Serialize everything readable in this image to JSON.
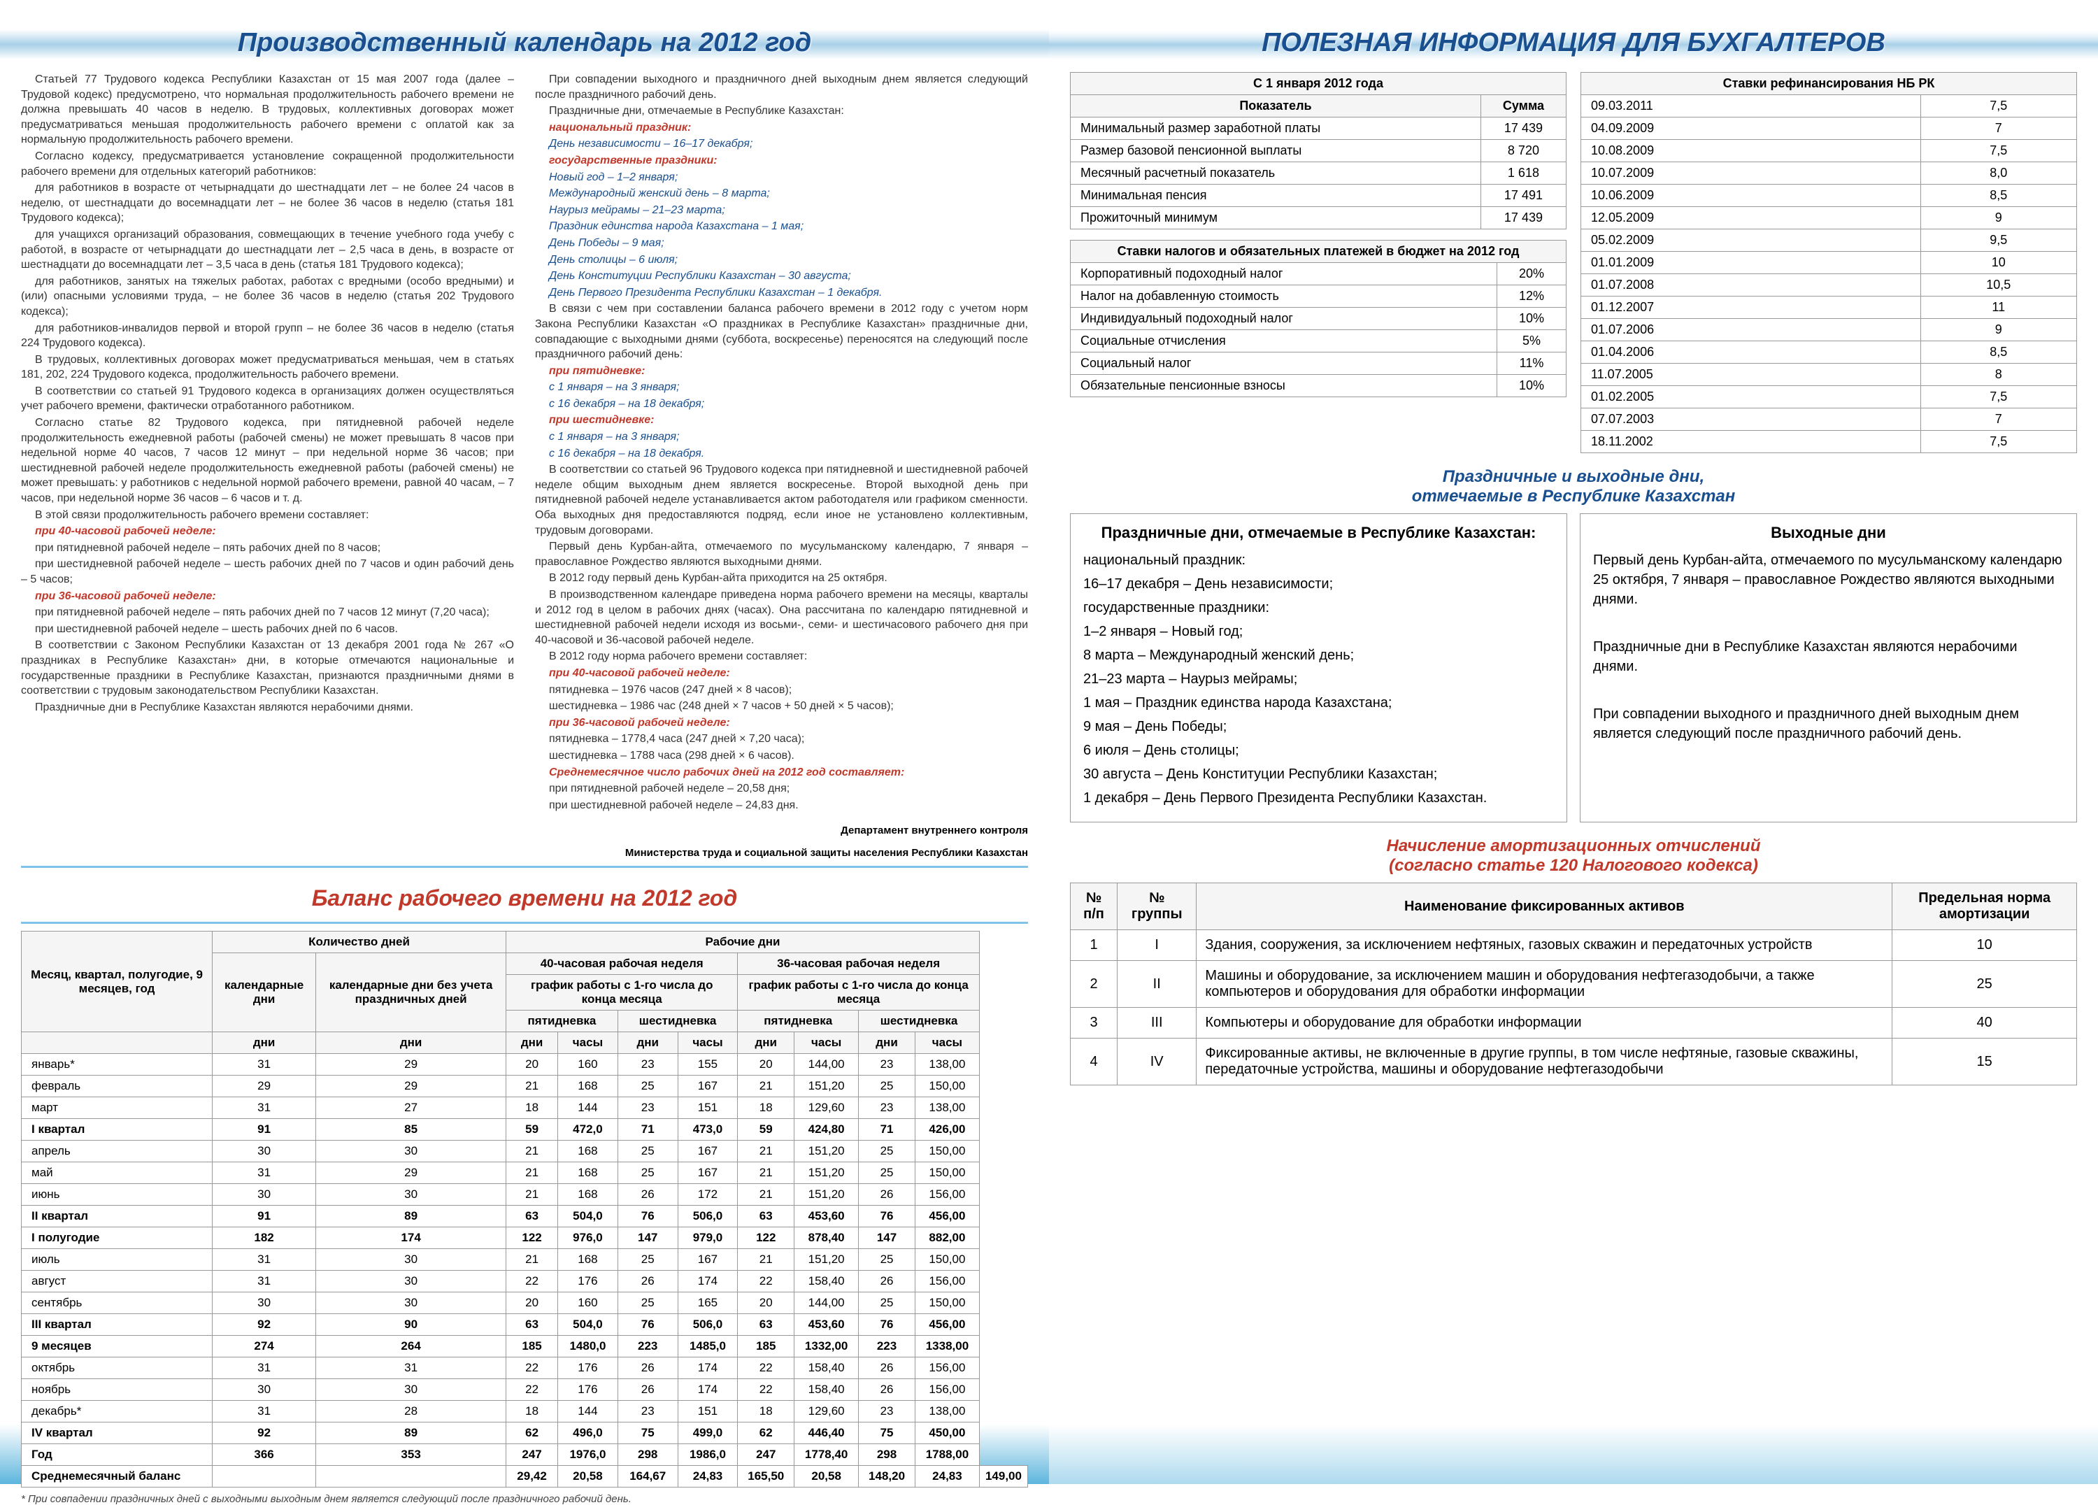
{
  "left": {
    "h1": "Производственный календарь на 2012 год",
    "col1": [
      {
        "t": "p",
        "v": "Статьей 77 Трудового кодекса Республики Казахстан от 15 мая 2007 года (далее – Трудовой кодекс) предусмотрено, что нормальная продолжительность рабочего времени не должна превышать 40 часов в неделю. В трудовых, коллективных договорах может предусматриваться меньшая продолжительность рабочего времени с оплатой как за нормальную продолжительность рабочего времени."
      },
      {
        "t": "p",
        "v": "Согласно кодексу, предусматривается установление сокращенной продолжительности рабочего времени для отдельных категорий работников:"
      },
      {
        "t": "p",
        "v": "для работников в возрасте от четырнадцати до шестнадцати лет – не более 24 часов в неделю, от шестнадцати до восемнадцати лет – не более 36 часов в неделю (статья 181 Трудового кодекса);"
      },
      {
        "t": "p",
        "v": "для учащихся организаций образования, совмещающих в течение учебного года учебу с работой, в возрасте от четырнадцати до шестнадцати лет – 2,5 часа в день, в возрасте от шестнадцати до восемнадцати лет – 3,5 часа в день (статья 181 Трудового кодекса);"
      },
      {
        "t": "p",
        "v": "для работников, занятых на тяжелых работах, работах с вредными (особо вредными) и (или) опасными условиями труда, – не более 36 часов в неделю (статья 202 Трудового кодекса);"
      },
      {
        "t": "p",
        "v": "для работников-инвалидов первой и второй групп – не более 36 часов в неделю (статья 224 Трудового кодекса)."
      },
      {
        "t": "p",
        "v": "В трудовых, коллективных договорах может предусматриваться меньшая, чем в статьях 181, 202, 224 Трудового кодекса, продолжительность рабочего времени."
      },
      {
        "t": "p",
        "v": "В соответствии со статьей 91 Трудового кодекса в организациях должен осуществляться учет рабочего времени, фактически отработанного работником."
      },
      {
        "t": "p",
        "v": "Согласно статье 82 Трудового кодекса, при пятидневной рабочей неделе продолжительность ежедневной работы (рабочей смены) не может превышать 8 часов при недельной норме 40 часов, 7 часов 12 минут – при недельной норме 36 часов; при шестидневной рабочей неделе продолжительность ежедневной работы (рабочей смены) не может превышать: у работников с недельной нормой рабочего времени, равной 40 часам, – 7 часов, при недельной норме 36 часов – 6 часов и т. д."
      },
      {
        "t": "p",
        "v": "В этой связи продолжительность рабочего времени составляет:"
      },
      {
        "t": "red-i",
        "v": "при 40-часовой рабочей неделе:"
      },
      {
        "t": "p",
        "v": "при пятидневной рабочей неделе – пять рабочих дней по 8 часов;"
      },
      {
        "t": "p",
        "v": "при шестидневной рабочей неделе – шесть рабочих дней по 7 часов и один рабочий день – 5 часов;"
      },
      {
        "t": "red-i",
        "v": "при 36-часовой рабочей неделе:"
      },
      {
        "t": "p",
        "v": "при пятидневной рабочей неделе – пять рабочих дней по 7 часов 12 минут (7,20 часа);"
      },
      {
        "t": "p",
        "v": "при шестидневной рабочей неделе – шесть рабочих дней по 6 часов."
      },
      {
        "t": "p",
        "v": "В соответствии с Законом Республики Казахстан от 13 декабря 2001 года № 267 «О праздниках в Республике Казахстан» дни, в которые отмечаются национальные и государственные праздники в Республике Казахстан, признаются праздничными днями в соответствии с трудовым законодательством Республики Казахстан."
      },
      {
        "t": "p",
        "v": "Праздничные дни в Республике Казахстан являются нерабочими днями."
      }
    ],
    "col2": [
      {
        "t": "p",
        "v": "При совпадении выходного и праздничного дней выходным днем является следующий после праздничного рабочий день."
      },
      {
        "t": "p",
        "v": "Праздничные дни, отмечаемые в Республике Казахстан:"
      },
      {
        "t": "red-i",
        "v": "национальный праздник:"
      },
      {
        "t": "blue-i",
        "v": "День независимости – 16–17 декабря;"
      },
      {
        "t": "red-i",
        "v": "государственные праздники:"
      },
      {
        "t": "blue-i",
        "v": "Новый год – 1–2 января;"
      },
      {
        "t": "blue-i",
        "v": "Международный женский день – 8 марта;"
      },
      {
        "t": "blue-i",
        "v": "Наурыз мейрамы – 21–23 марта;"
      },
      {
        "t": "blue-i",
        "v": "Праздник единства народа Казахстана – 1 мая;"
      },
      {
        "t": "blue-i",
        "v": "День Победы – 9 мая;"
      },
      {
        "t": "blue-i",
        "v": "День столицы – 6 июля;"
      },
      {
        "t": "blue-i",
        "v": "День Конституции Республики Казахстан – 30 августа;"
      },
      {
        "t": "blue-i",
        "v": "День Первого Президента Республики Казахстан – 1 декабря."
      },
      {
        "t": "p",
        "v": "В связи с чем при составлении баланса рабочего времени в 2012 году с учетом норм Закона Республики Казахстан «О праздниках в Республике Казахстан» праздничные дни, совпадающие с выходными днями (суббота, воскресенье) переносятся на следующий после праздничного рабочий день:"
      },
      {
        "t": "red-i",
        "v": "при пятидневке:"
      },
      {
        "t": "blue-i",
        "v": "с 1 января – на 3 января;"
      },
      {
        "t": "blue-i",
        "v": "с 16 декабря – на 18 декабря;"
      },
      {
        "t": "red-i",
        "v": "при шестидневке:"
      },
      {
        "t": "blue-i",
        "v": "с 1 января – на 3 января;"
      },
      {
        "t": "blue-i",
        "v": "с 16 декабря – на 18 декабря."
      },
      {
        "t": "p",
        "v": "В соответствии со статьей 96 Трудового кодекса при пятидневной и шестидневной рабочей неделе общим выходным днем является воскресенье. Второй выходной день при пятидневной рабочей неделе устанавливается актом работодателя или графиком сменности. Оба выходных дня предоставляются подряд, если иное не установлено коллективным, трудовым договорами."
      },
      {
        "t": "p",
        "v": "Первый день Курбан-айта, отмечаемого по мусульманскому календарю, 7 января – православное Рождество являются выходными днями."
      },
      {
        "t": "p",
        "v": "В 2012 году первый день Курбан-айта приходится на 25 октября."
      },
      {
        "t": "p",
        "v": "В производственном календаре приведена норма рабочего времени на месяцы, кварталы и 2012 год в целом в рабочих днях (часах). Она рассчитана по календарю пятидневной и шестидневной рабочей недели исходя из восьми-, семи- и шестичасового рабочего дня при 40-часовой и 36-часовой рабочей неделе."
      },
      {
        "t": "p",
        "v": "В 2012 году норма рабочего времени составляет:"
      },
      {
        "t": "red-i",
        "v": "при 40-часовой рабочей неделе:"
      },
      {
        "t": "p",
        "v": "пятидневка – 1976 часов (247 дней × 8 часов);"
      },
      {
        "t": "p",
        "v": "шестидневка – 1986 час (248 дней × 7 часов + 50 дней × 5 часов);"
      },
      {
        "t": "red-i",
        "v": "при 36-часовой рабочей неделе:"
      },
      {
        "t": "p",
        "v": "пятидневка – 1778,4 часа (247 дней × 7,20 часа);"
      },
      {
        "t": "p",
        "v": "шестидневка – 1788 часа (298 дней × 6 часов)."
      },
      {
        "t": "red-i",
        "v": "Среднемесячное число рабочих дней на 2012 год составляет:"
      },
      {
        "t": "p",
        "v": "при пятидневной рабочей неделе – 20,58 дня;"
      },
      {
        "t": "p",
        "v": "при шестидневной рабочей неделе – 24,83 дня."
      }
    ],
    "sig1": "Департамент внутреннего контроля",
    "sig2": "Министерства труда и социальной защиты населения Республики Казахстан",
    "h2": "Баланс рабочего времени на 2012 год",
    "tbl": {
      "head": {
        "c1": "Месяц, квартал, полугодие, 9 месяцев, год",
        "g1": "Количество дней",
        "g2": "Рабочие дни",
        "c2": "календарные дни",
        "c3": "календарные дни без учета праздничных дней",
        "g3": "40-часовая рабочая неделя",
        "g4": "36-часовая рабочая неделя",
        "sub": "график работы с 1-го числа до конца месяца",
        "p": "пятидневка",
        "s": "шестидневка",
        "d": "дни",
        "h": "часы"
      },
      "rows": [
        [
          "январь*",
          "31",
          "29",
          "20",
          "160",
          "23",
          "155",
          "20",
          "144,00",
          "23",
          "138,00",
          0
        ],
        [
          "февраль",
          "29",
          "29",
          "21",
          "168",
          "25",
          "167",
          "21",
          "151,20",
          "25",
          "150,00",
          0
        ],
        [
          "март",
          "31",
          "27",
          "18",
          "144",
          "23",
          "151",
          "18",
          "129,60",
          "23",
          "138,00",
          0
        ],
        [
          "I квартал",
          "91",
          "85",
          "59",
          "472,0",
          "71",
          "473,0",
          "59",
          "424,80",
          "71",
          "426,00",
          1
        ],
        [
          "апрель",
          "30",
          "30",
          "21",
          "168",
          "25",
          "167",
          "21",
          "151,20",
          "25",
          "150,00",
          0
        ],
        [
          "май",
          "31",
          "29",
          "21",
          "168",
          "25",
          "167",
          "21",
          "151,20",
          "25",
          "150,00",
          0
        ],
        [
          "июнь",
          "30",
          "30",
          "21",
          "168",
          "26",
          "172",
          "21",
          "151,20",
          "26",
          "156,00",
          0
        ],
        [
          "II квартал",
          "91",
          "89",
          "63",
          "504,0",
          "76",
          "506,0",
          "63",
          "453,60",
          "76",
          "456,00",
          1
        ],
        [
          "I полугодие",
          "182",
          "174",
          "122",
          "976,0",
          "147",
          "979,0",
          "122",
          "878,40",
          "147",
          "882,00",
          1
        ],
        [
          "июль",
          "31",
          "30",
          "21",
          "168",
          "25",
          "167",
          "21",
          "151,20",
          "25",
          "150,00",
          0
        ],
        [
          "август",
          "31",
          "30",
          "22",
          "176",
          "26",
          "174",
          "22",
          "158,40",
          "26",
          "156,00",
          0
        ],
        [
          "сентябрь",
          "30",
          "30",
          "20",
          "160",
          "25",
          "165",
          "20",
          "144,00",
          "25",
          "150,00",
          0
        ],
        [
          "III квартал",
          "92",
          "90",
          "63",
          "504,0",
          "76",
          "506,0",
          "63",
          "453,60",
          "76",
          "456,00",
          1
        ],
        [
          "9 месяцев",
          "274",
          "264",
          "185",
          "1480,0",
          "223",
          "1485,0",
          "185",
          "1332,00",
          "223",
          "1338,00",
          1
        ],
        [
          "октябрь",
          "31",
          "31",
          "22",
          "176",
          "26",
          "174",
          "22",
          "158,40",
          "26",
          "156,00",
          0
        ],
        [
          "ноябрь",
          "30",
          "30",
          "22",
          "176",
          "26",
          "174",
          "22",
          "158,40",
          "26",
          "156,00",
          0
        ],
        [
          "декабрь*",
          "31",
          "28",
          "18",
          "144",
          "23",
          "151",
          "18",
          "129,60",
          "23",
          "138,00",
          0
        ],
        [
          "IV квартал",
          "92",
          "89",
          "62",
          "496,0",
          "75",
          "499,0",
          "62",
          "446,40",
          "75",
          "450,00",
          1
        ],
        [
          "Год",
          "366",
          "353",
          "247",
          "1976,0",
          "298",
          "1986,0",
          "247",
          "1778,40",
          "298",
          "1788,00",
          1
        ],
        [
          "Среднемесячный баланс",
          "",
          "",
          "29,42",
          "20,58",
          "164,67",
          "24,83",
          "165,50",
          "20,58",
          "148,20",
          "24,83",
          "149,00",
          1
        ]
      ],
      "foot": "* При совпадении праздничных дней с выходными выходным днем является следующий после праздничного рабочий день."
    }
  },
  "right": {
    "h1": "ПОЛЕЗНАЯ ИНФОРМАЦИЯ ДЛЯ БУХГАЛТЕРОВ",
    "t1": {
      "title": "С 1 января 2012 года",
      "h": [
        "Показатель",
        "Сумма"
      ],
      "rows": [
        [
          "Минимальный размер заработной платы",
          "17 439"
        ],
        [
          "Размер базовой пенсионной выплаты",
          "8 720"
        ],
        [
          "Месячный расчетный показатель",
          "1 618"
        ],
        [
          "Минимальная пенсия",
          "17 491"
        ],
        [
          "Прожиточный минимум",
          "17 439"
        ]
      ]
    },
    "t2": {
      "title": "Ставки налогов и обязательных платежей в бюджет на 2012 год",
      "rows": [
        [
          "Корпоративный подоходный налог",
          "20%"
        ],
        [
          "Налог на добавленную стоимость",
          "12%"
        ],
        [
          "Индивидуальный подоходный налог",
          "10%"
        ],
        [
          "Социальные отчисления",
          "5%"
        ],
        [
          "Социальный налог",
          "11%"
        ],
        [
          "Обязательные пенсионные взносы",
          "10%"
        ]
      ]
    },
    "t3": {
      "title": "Ставки рефинансирования НБ РК",
      "rows": [
        [
          "09.03.2011",
          "7,5"
        ],
        [
          "04.09.2009",
          "7"
        ],
        [
          "10.08.2009",
          "7,5"
        ],
        [
          "10.07.2009",
          "8,0"
        ],
        [
          "10.06.2009",
          "8,5"
        ],
        [
          "12.05.2009",
          "9"
        ],
        [
          "05.02.2009",
          "9,5"
        ],
        [
          "01.01.2009",
          "10"
        ],
        [
          "01.07.2008",
          "10,5"
        ],
        [
          "01.12.2007",
          "11"
        ],
        [
          "01.07.2006",
          "9"
        ],
        [
          "01.04.2006",
          "8,5"
        ],
        [
          "11.07.2005",
          "8"
        ],
        [
          "01.02.2005",
          "7,5"
        ],
        [
          "07.07.2003",
          "7"
        ],
        [
          "18.11.2002",
          "7,5"
        ]
      ]
    },
    "h2a": "Праздничные и выходные дни,",
    "h2b": "отмечаемые в Республике Казахстан",
    "p1": {
      "title": "Праздничные дни, отмечаемые в Республике Казахстан:",
      "lines": [
        "национальный праздник:",
        "16–17 декабря – День независимости;",
        "государственные праздники:",
        "1–2 января – Новый год;",
        "8 марта – Международный женский день;",
        "21–23 марта – Наурыз мейрамы;",
        "1 мая – Праздник единства народа Казахстана;",
        "9 мая – День Победы;",
        "6 июля – День столицы;",
        "30 августа – День Конституции Республики Казахстан;",
        "1 декабря – День Первого Президента Республики Казахстан."
      ]
    },
    "p2": {
      "title": "Выходные дни",
      "lines": [
        "Первый день Курбан-айта, отмечаемого по мусульманскому календарю 25 октября, 7 января – православное Рождество являются выходными днями.",
        "",
        "Праздничные дни в Республике Казахстан являются нерабочими днями.",
        "",
        "При совпадении выходного и праздничного дней выходным днем является следующий после праздничного рабочий день."
      ]
    },
    "h3a": "Начисление амортизационных отчислений",
    "h3b": "(согласно статье 120 Налогового кодекса)",
    "depr": {
      "h": [
        "№ п/п",
        "№ группы",
        "Наименование фиксированных активов",
        "Предельная норма амортизации"
      ],
      "rows": [
        [
          "1",
          "I",
          "Здания, сооружения, за исключением нефтяных, газовых скважин и передаточных устройств",
          "10"
        ],
        [
          "2",
          "II",
          "Машины и оборудование, за исключением машин и оборудования нефтегазодобычи, а также компьютеров и оборудования для обработки информации",
          "25"
        ],
        [
          "3",
          "III",
          "Компьютеры и оборудование для обработки информации",
          "40"
        ],
        [
          "4",
          "IV",
          "Фиксированные активы, не включенные в другие группы, в том числе нефтяные, газовые скважины, передаточные устройства, машины и оборудование нефтегазодобычи",
          "15"
        ]
      ]
    }
  }
}
